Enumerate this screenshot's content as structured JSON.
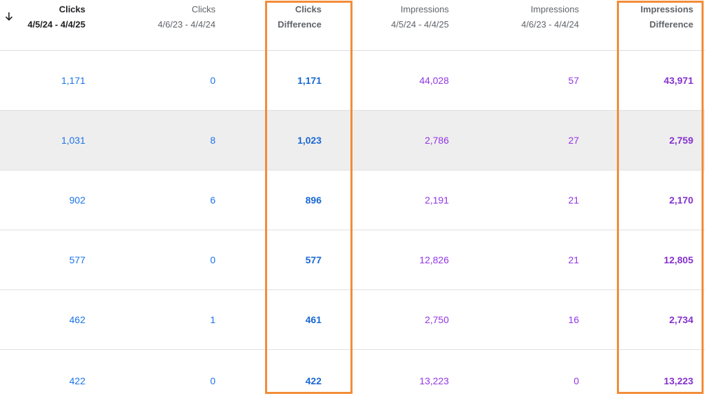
{
  "header": {
    "col1_line1": "Clicks",
    "col1_line2": "4/5/24 - 4/4/25",
    "col2_line1": "Clicks",
    "col2_line2": "4/6/23 - 4/4/24",
    "col3_line1": "Clicks",
    "col3_line2": "Difference",
    "col4_line1": "Impressions",
    "col4_line2": "4/5/24 - 4/4/25",
    "col5_line1": "Impressions",
    "col5_line2": "4/6/23 - 4/4/24",
    "col6_line1": "Impressions",
    "col6_line2": "Difference",
    "sort_icon": "arrow-down-icon"
  },
  "rows": [
    {
      "c1": "1,171",
      "c2": "0",
      "c3": "1,171",
      "c4": "44,028",
      "c5": "57",
      "c6": "43,971"
    },
    {
      "c1": "1,031",
      "c2": "8",
      "c3": "1,023",
      "c4": "2,786",
      "c5": "27",
      "c6": "2,759"
    },
    {
      "c1": "902",
      "c2": "6",
      "c3": "896",
      "c4": "2,191",
      "c5": "21",
      "c6": "2,170"
    },
    {
      "c1": "577",
      "c2": "0",
      "c3": "577",
      "c4": "12,826",
      "c5": "21",
      "c6": "12,805"
    },
    {
      "c1": "462",
      "c2": "1",
      "c3": "461",
      "c4": "2,750",
      "c5": "16",
      "c6": "2,734"
    },
    {
      "c1": "422",
      "c2": "0",
      "c3": "422",
      "c4": "13,223",
      "c5": "0",
      "c6": "13,223"
    }
  ],
  "colors": {
    "clicks": "#1a73e8",
    "impressions": "#9334e6",
    "highlight": "#f28c38",
    "hover_row": "#eeeeee"
  }
}
